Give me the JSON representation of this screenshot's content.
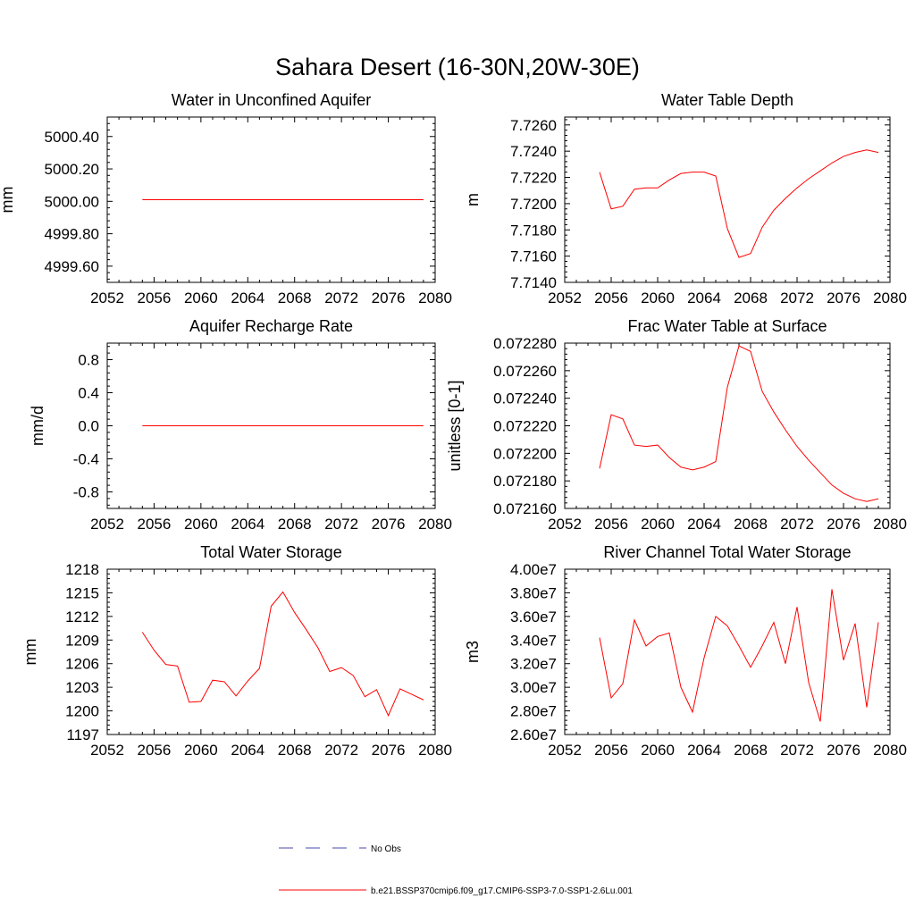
{
  "figure_title": "Sahara Desert (16-30N,20W-30E)",
  "legend": [
    {
      "label": "No Obs",
      "color": "#4a4aa8",
      "dash": true
    },
    {
      "label": "b.e21.BSSP370cmip6.f09_g17.CMIP6-SSP3-7.0-SSP1-2.6Lu.001",
      "color": "#ff0000",
      "dash": false
    }
  ],
  "chart_data": [
    {
      "type": "line",
      "title": "Water in Unconfined Aquifer",
      "ylabel": "mm",
      "xlim": [
        2052,
        2080
      ],
      "ylim": [
        4999.5,
        5000.52
      ],
      "xticks": [
        2052,
        2056,
        2060,
        2064,
        2068,
        2072,
        2076,
        2080
      ],
      "yticks": [
        4999.6,
        4999.8,
        5000.0,
        5000.2,
        5000.4
      ],
      "ytick_labels": [
        "4999.60",
        "4999.80",
        "5000.00",
        "5000.20",
        "5000.40"
      ],
      "series": [
        {
          "color": "#ff0000",
          "x": [
            2055,
            2056,
            2057,
            2058,
            2059,
            2060,
            2061,
            2062,
            2063,
            2064,
            2065,
            2066,
            2067,
            2068,
            2069,
            2070,
            2071,
            2072,
            2073,
            2074,
            2075,
            2076,
            2077,
            2078,
            2079
          ],
          "y": [
            5000.01,
            5000.01,
            5000.01,
            5000.01,
            5000.01,
            5000.01,
            5000.01,
            5000.01,
            5000.01,
            5000.01,
            5000.01,
            5000.01,
            5000.01,
            5000.01,
            5000.01,
            5000.01,
            5000.01,
            5000.01,
            5000.01,
            5000.01,
            5000.01,
            5000.01,
            5000.01,
            5000.01,
            5000.01
          ]
        }
      ]
    },
    {
      "type": "line",
      "title": "Water Table Depth",
      "ylabel": "m",
      "xlim": [
        2052,
        2080
      ],
      "ylim": [
        7.714,
        7.7266
      ],
      "xticks": [
        2052,
        2056,
        2060,
        2064,
        2068,
        2072,
        2076,
        2080
      ],
      "yticks": [
        7.714,
        7.716,
        7.718,
        7.72,
        7.722,
        7.724,
        7.726
      ],
      "ytick_labels": [
        "7.7140",
        "7.7160",
        "7.7180",
        "7.7200",
        "7.7220",
        "7.7240",
        "7.7260"
      ],
      "series": [
        {
          "color": "#ff0000",
          "x": [
            2055,
            2056,
            2057,
            2058,
            2059,
            2060,
            2061,
            2062,
            2063,
            2064,
            2065,
            2066,
            2067,
            2068,
            2069,
            2070,
            2071,
            2072,
            2073,
            2074,
            2075,
            2076,
            2077,
            2078,
            2079
          ],
          "y": [
            7.7224,
            7.7196,
            7.7198,
            7.7211,
            7.7212,
            7.7212,
            7.7218,
            7.7223,
            7.7224,
            7.7224,
            7.7221,
            7.7181,
            7.7159,
            7.7162,
            7.7182,
            7.7195,
            7.7204,
            7.7212,
            7.7219,
            7.7225,
            7.7231,
            7.7236,
            7.7239,
            7.7241,
            7.7239
          ]
        }
      ]
    },
    {
      "type": "line",
      "title": "Aquifer Recharge Rate",
      "ylabel": "mm/d",
      "xlim": [
        2052,
        2080
      ],
      "ylim": [
        -1.0,
        1.0
      ],
      "xticks": [
        2052,
        2056,
        2060,
        2064,
        2068,
        2072,
        2076,
        2080
      ],
      "yticks": [
        -0.8,
        -0.4,
        0.0,
        0.4,
        0.8
      ],
      "ytick_labels": [
        "-0.8",
        "-0.4",
        "0.0",
        "0.4",
        "0.8"
      ],
      "series": [
        {
          "color": "#ff0000",
          "x": [
            2055,
            2056,
            2057,
            2058,
            2059,
            2060,
            2061,
            2062,
            2063,
            2064,
            2065,
            2066,
            2067,
            2068,
            2069,
            2070,
            2071,
            2072,
            2073,
            2074,
            2075,
            2076,
            2077,
            2078,
            2079
          ],
          "y": [
            0,
            0,
            0,
            0,
            0,
            0,
            0,
            0,
            0,
            0,
            0,
            0,
            0,
            0,
            0,
            0,
            0,
            0,
            0,
            0,
            0,
            0,
            0,
            0,
            0
          ]
        }
      ]
    },
    {
      "type": "line",
      "title": "Frac Water Table at Surface",
      "ylabel": "unitless [0-1]",
      "xlim": [
        2052,
        2080
      ],
      "ylim": [
        0.07216,
        0.07228
      ],
      "xticks": [
        2052,
        2056,
        2060,
        2064,
        2068,
        2072,
        2076,
        2080
      ],
      "yticks": [
        0.07216,
        0.07218,
        0.0722,
        0.07222,
        0.07224,
        0.07226,
        0.07228
      ],
      "ytick_labels": [
        "0.072160",
        "0.072180",
        "0.072200",
        "0.072220",
        "0.072240",
        "0.072260",
        "0.072280"
      ],
      "series": [
        {
          "color": "#ff0000",
          "x": [
            2055,
            2056,
            2057,
            2058,
            2059,
            2060,
            2061,
            2062,
            2063,
            2064,
            2065,
            2066,
            2067,
            2068,
            2069,
            2070,
            2071,
            2072,
            2073,
            2074,
            2075,
            2076,
            2077,
            2078,
            2079
          ],
          "y": [
            0.072189,
            0.072228,
            0.072225,
            0.072206,
            0.072205,
            0.072206,
            0.072197,
            0.07219,
            0.072188,
            0.07219,
            0.072194,
            0.072248,
            0.072278,
            0.072274,
            0.072245,
            0.07223,
            0.072217,
            0.072205,
            0.072195,
            0.072186,
            0.072177,
            0.072171,
            0.072167,
            0.072165,
            0.072167
          ]
        }
      ]
    },
    {
      "type": "line",
      "title": "Total Water Storage",
      "ylabel": "mm",
      "xlim": [
        2052,
        2080
      ],
      "ylim": [
        1197,
        1218
      ],
      "xticks": [
        2052,
        2056,
        2060,
        2064,
        2068,
        2072,
        2076,
        2080
      ],
      "yticks": [
        1197,
        1200,
        1203,
        1206,
        1209,
        1212,
        1215,
        1218
      ],
      "ytick_labels": [
        "1197",
        "1200",
        "1203",
        "1206",
        "1209",
        "1212",
        "1215",
        "1218"
      ],
      "series": [
        {
          "color": "#ff0000",
          "x": [
            2055,
            2056,
            2057,
            2058,
            2059,
            2060,
            2061,
            2062,
            2063,
            2064,
            2065,
            2066,
            2067,
            2068,
            2069,
            2070,
            2071,
            2072,
            2073,
            2074,
            2075,
            2076,
            2077,
            2078,
            2079
          ],
          "y": [
            1210.0,
            1207.7,
            1205.9,
            1205.7,
            1201.1,
            1201.2,
            1203.9,
            1203.7,
            1201.9,
            1203.8,
            1205.4,
            1213.3,
            1215.1,
            1212.5,
            1210.3,
            1208.0,
            1205.0,
            1205.5,
            1204.5,
            1201.8,
            1202.7,
            1199.4,
            1202.8,
            1202.1,
            1201.4
          ]
        }
      ]
    },
    {
      "type": "line",
      "title": "River Channel Total Water Storage",
      "ylabel": "m3",
      "xlim": [
        2052,
        2080
      ],
      "ylim": [
        26000000,
        40000000
      ],
      "xticks": [
        2052,
        2056,
        2060,
        2064,
        2068,
        2072,
        2076,
        2080
      ],
      "yticks": [
        26000000,
        28000000,
        30000000,
        32000000,
        34000000,
        36000000,
        38000000,
        40000000
      ],
      "ytick_labels": [
        "2.60e7",
        "2.80e7",
        "3.00e7",
        "3.20e7",
        "3.40e7",
        "3.60e7",
        "3.80e7",
        "4.00e7"
      ],
      "series": [
        {
          "color": "#ff0000",
          "x": [
            2055,
            2056,
            2057,
            2058,
            2059,
            2060,
            2061,
            2062,
            2063,
            2064,
            2065,
            2066,
            2067,
            2068,
            2069,
            2070,
            2071,
            2072,
            2073,
            2074,
            2075,
            2076,
            2077,
            2078,
            2079
          ],
          "y": [
            34200000,
            29100000,
            30300000,
            35700000,
            33500000,
            34300000,
            34600000,
            30000000,
            27900000,
            32500000,
            36000000,
            35200000,
            33500000,
            31700000,
            33500000,
            35500000,
            32000000,
            36800000,
            30400000,
            27100000,
            38300000,
            32300000,
            35400000,
            28300000,
            35500000
          ]
        }
      ]
    }
  ]
}
